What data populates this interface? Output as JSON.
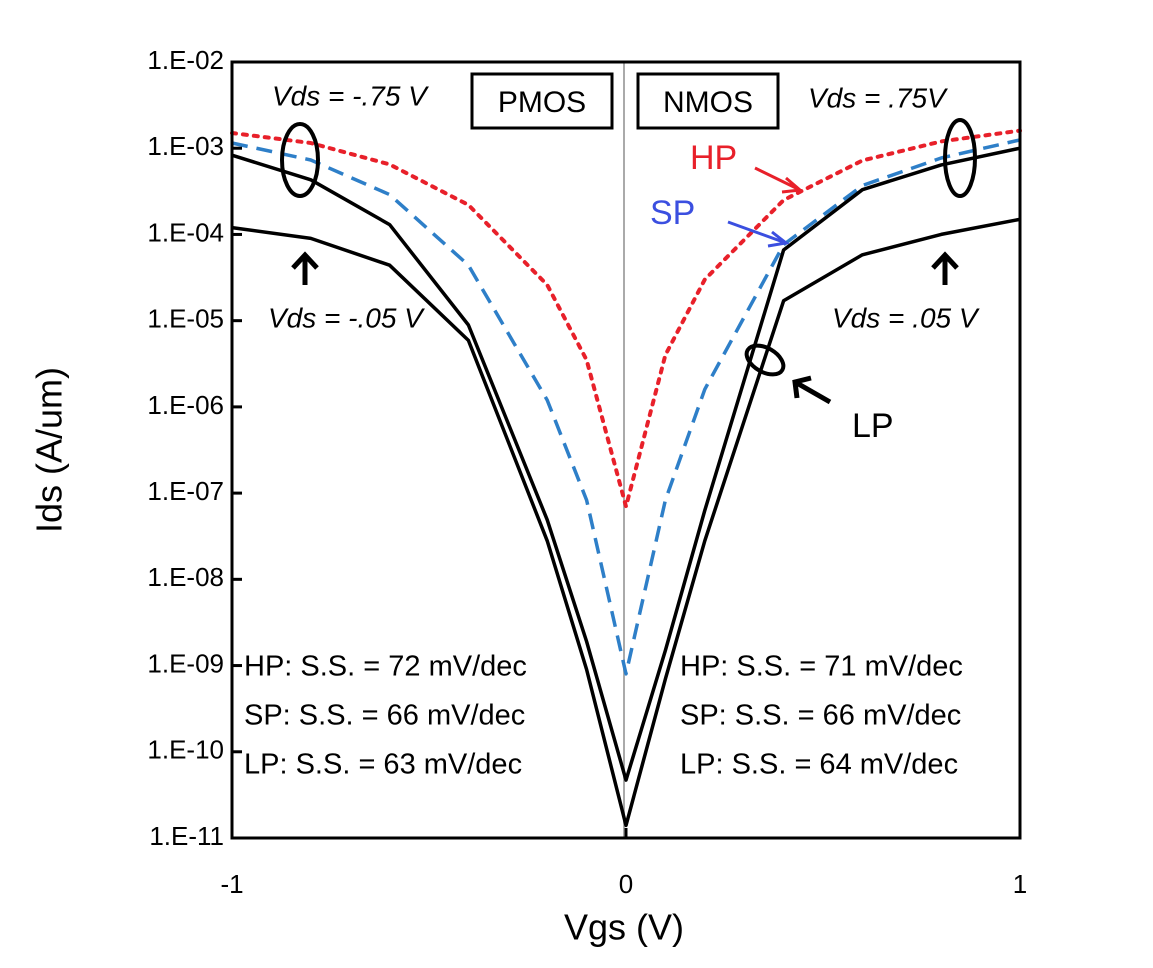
{
  "chart_data": {
    "type": "line",
    "xlabel": "Vgs (V)",
    "ylabel": "Ids (A/um)",
    "x": [
      -1,
      -0.8,
      -0.6,
      -0.4,
      -0.2,
      -0.1,
      0,
      0.1,
      0.2,
      0.4,
      0.6,
      0.8,
      1
    ],
    "series": [
      {
        "name": "HP",
        "color": "#e8202a",
        "style": "dotted",
        "values": [
          0.0015,
          0.00115,
          0.00065,
          0.00022,
          2.6e-05,
          3.5e-06,
          7e-08,
          4e-06,
          3e-05,
          0.00025,
          0.00072,
          0.0012,
          0.0016
        ]
      },
      {
        "name": "SP",
        "color": "#2e7fc8",
        "style": "dashed",
        "values": [
          0.00115,
          0.00073,
          0.00029,
          4.4e-05,
          1.2e-06,
          8.3e-08,
          8e-10,
          8.3e-08,
          1.6e-06,
          7.6e-05,
          0.00037,
          0.00077,
          0.00125
        ]
      },
      {
        "name": "LP",
        "color": "#000000",
        "style": "solid",
        "values": [
          0.00083,
          0.00043,
          0.00013,
          8.9e-06,
          4.9e-08,
          1.9e-09,
          4.7e-11,
          1.5e-09,
          6.3e-08,
          6.6e-05,
          0.00033,
          0.00064,
          0.001
        ]
      },
      {
        "color": "#000000",
        "style": "solid",
        "values": [
          0.00012,
          9e-05,
          4.4e-05,
          5.9e-06,
          2.8e-08,
          9e-10,
          1.4e-11,
          7e-10,
          2.8e-08,
          1.7e-05,
          5.8e-05,
          0.0001,
          0.00015
        ]
      }
    ],
    "xlim": [
      -1,
      1
    ],
    "xticks": [
      -1,
      0,
      1
    ],
    "ylim": [
      1e-11,
      0.01
    ],
    "ylog": true,
    "yticks": [
      {
        "value": 0.01,
        "label": "1.E-02"
      },
      {
        "value": 0.001,
        "label": "1.E-03"
      },
      {
        "value": 0.0001,
        "label": "1.E-04"
      },
      {
        "value": 1e-05,
        "label": "1.E-05"
      },
      {
        "value": 1e-06,
        "label": "1.E-06"
      },
      {
        "value": 1e-07,
        "label": "1.E-07"
      },
      {
        "value": 1e-08,
        "label": "1.E-08"
      },
      {
        "value": 1e-09,
        "label": "1.E-09"
      },
      {
        "value": 1e-10,
        "label": "1.E-10"
      },
      {
        "value": 1e-11,
        "label": "1.E-11"
      }
    ],
    "grid": false,
    "annotations": [
      "Vds = -.75 V",
      "PMOS",
      "NMOS",
      "Vds = .75V",
      "HP",
      "SP",
      "Vds = -.05 V",
      "Vds = .05 V",
      "LP",
      "HP: S.S. = 72 mV/dec",
      "SP: S.S. =  66 mV/dec",
      "LP: S.S. =  63 mV/dec",
      "HP: S.S. = 71 mV/dec",
      "SP: S.S. =  66 mV/dec",
      "LP: S.S. =  64 mV/dec"
    ]
  }
}
